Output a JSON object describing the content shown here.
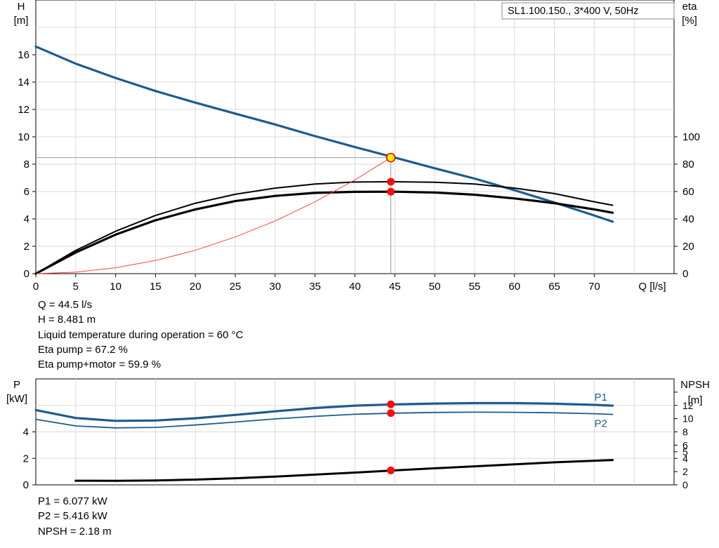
{
  "legend_box": "SL1.100.150., 3*400 V, 50Hz",
  "chart_data": [
    {
      "type": "line",
      "xlabel": "Q [l/s]",
      "ylabel": "H\n[m]",
      "y2label": "eta\n[%]",
      "xlim": [
        0,
        80
      ],
      "ylim": [
        0,
        20
      ],
      "y2lim": [
        0,
        200
      ],
      "xticks": [
        0,
        5,
        10,
        15,
        20,
        25,
        30,
        35,
        40,
        45,
        50,
        55,
        60,
        65,
        70
      ],
      "yticks": [
        0,
        2,
        4,
        6,
        8,
        10,
        12,
        14,
        16
      ],
      "y2ticks": [
        0,
        20,
        40,
        60,
        80,
        100
      ],
      "grid": true,
      "series": [
        {
          "key": "head",
          "axis": "y",
          "color": "#1f5a8e",
          "x": [
            0,
            5,
            10,
            15,
            20,
            25,
            30,
            35,
            40,
            45,
            50,
            55,
            60,
            65,
            70,
            72.3
          ],
          "y": [
            16.6,
            15.35,
            14.3,
            13.35,
            12.5,
            11.7,
            10.9,
            10.05,
            9.25,
            8.481,
            7.7,
            6.95,
            6.1,
            5.2,
            4.25,
            3.8
          ]
        },
        {
          "key": "eta_pump",
          "axis": "y2",
          "color": "#000000",
          "x": [
            0,
            5,
            10,
            15,
            20,
            25,
            30,
            35,
            40,
            45,
            50,
            55,
            60,
            65,
            70,
            72.3
          ],
          "y": [
            0,
            17,
            31,
            42.5,
            51.5,
            58,
            62.5,
            65.5,
            67,
            67.2,
            66.8,
            65.5,
            62.5,
            58.5,
            52.5,
            50
          ]
        },
        {
          "key": "eta_total",
          "axis": "y2",
          "color": "#000000",
          "x": [
            0,
            5,
            10,
            15,
            20,
            25,
            30,
            35,
            40,
            45,
            50,
            55,
            60,
            65,
            70,
            72.3
          ],
          "y": [
            0,
            15.5,
            28.5,
            39,
            47,
            53,
            56.8,
            59,
            59.8,
            59.9,
            59.3,
            57.7,
            55,
            51.5,
            47,
            44.5
          ]
        },
        {
          "key": "system",
          "axis": "y",
          "color": "#ff4040",
          "x": [
            0,
            5,
            10,
            15,
            20,
            25,
            30,
            35,
            40,
            44.5
          ],
          "y": [
            0,
            0.11,
            0.43,
            0.96,
            1.71,
            2.68,
            3.85,
            5.25,
            6.85,
            8.481
          ]
        }
      ],
      "operating_point": {
        "x": 44.5,
        "y": 8.481
      },
      "markers": [
        {
          "x": 44.5,
          "y2": 67.2
        },
        {
          "x": 44.5,
          "y2": 59.9
        }
      ]
    },
    {
      "type": "line",
      "ylabel": "P\n[kW]",
      "y2label": "NPSH\n[m]",
      "xlim": [
        0,
        80
      ],
      "ylim": [
        0,
        8
      ],
      "y2lim": [
        0,
        16
      ],
      "yticks": [
        0,
        2,
        4
      ],
      "y2ticks": [
        0,
        2,
        4,
        5,
        6,
        8,
        10,
        12
      ],
      "grid": true,
      "series": [
        {
          "key": "P1",
          "name": "P1",
          "axis": "y",
          "color": "#1f5a8e",
          "x": [
            0,
            5,
            10,
            15,
            20,
            25,
            30,
            35,
            40,
            45,
            50,
            55,
            60,
            65,
            70,
            72.3
          ],
          "y": [
            5.65,
            5.05,
            4.83,
            4.86,
            5.03,
            5.28,
            5.55,
            5.8,
            5.98,
            6.077,
            6.14,
            6.17,
            6.17,
            6.13,
            6.04,
            5.98
          ]
        },
        {
          "key": "P2",
          "name": "P2",
          "axis": "y",
          "color": "#1f5a8e",
          "x": [
            0,
            5,
            10,
            15,
            20,
            25,
            30,
            35,
            40,
            45,
            50,
            55,
            60,
            65,
            70,
            72.3
          ],
          "y": [
            4.95,
            4.45,
            4.3,
            4.34,
            4.52,
            4.74,
            4.98,
            5.17,
            5.33,
            5.416,
            5.47,
            5.49,
            5.48,
            5.44,
            5.37,
            5.32
          ]
        },
        {
          "key": "NPSH",
          "axis": "y2",
          "color": "#000000",
          "x": [
            5,
            10,
            15,
            20,
            25,
            30,
            35,
            40,
            45,
            50,
            55,
            60,
            65,
            70,
            72.3
          ],
          "y": [
            0.62,
            0.6,
            0.66,
            0.8,
            1.0,
            1.25,
            1.55,
            1.85,
            2.18,
            2.5,
            2.8,
            3.1,
            3.4,
            3.65,
            3.75
          ]
        }
      ],
      "markers": [
        {
          "x": 44.5,
          "y": 6.077
        },
        {
          "x": 44.5,
          "y": 5.416
        },
        {
          "x": 44.5,
          "y2": 2.18
        }
      ]
    }
  ],
  "info_top": [
    "Q = 44.5 l/s",
    "H = 8.481 m",
    "Liquid temperature during operation = 60 °C",
    "Eta pump = 67.2 %",
    "Eta pump+motor = 59.9 %"
  ],
  "info_bottom": [
    "P1 = 6.077 kW",
    "P2 = 5.416 kW",
    "NPSH = 2.18 m"
  ]
}
